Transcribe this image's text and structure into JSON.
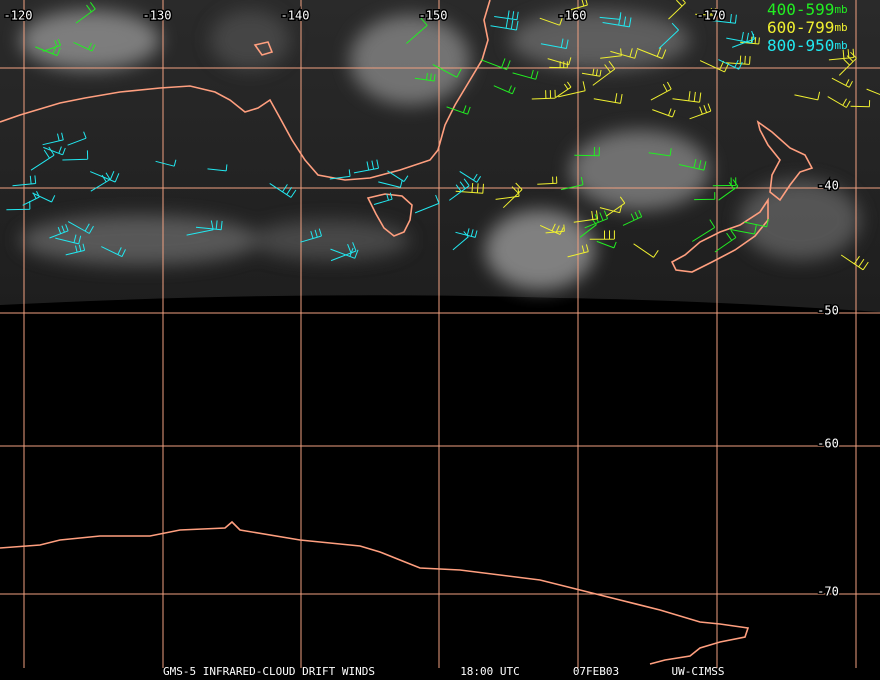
{
  "map": {
    "longitude_labels": [
      -120,
      -130,
      -140,
      -150,
      -160,
      -170
    ],
    "latitude_labels": [
      -40,
      -50,
      -60,
      -70
    ],
    "legend": [
      {
        "range": "400-599",
        "unit": "mb",
        "color": "#22ee22"
      },
      {
        "range": "600-799",
        "unit": "mb",
        "color": "#f0f030"
      },
      {
        "range": "800-950",
        "unit": "mb",
        "color": "#22e8f0"
      }
    ],
    "footer": [
      "GMS-5 INFRARED-CLOUD DRIFT WINDS",
      "18:00 UTC",
      "07FEB03",
      "UW-CIMSS"
    ]
  }
}
